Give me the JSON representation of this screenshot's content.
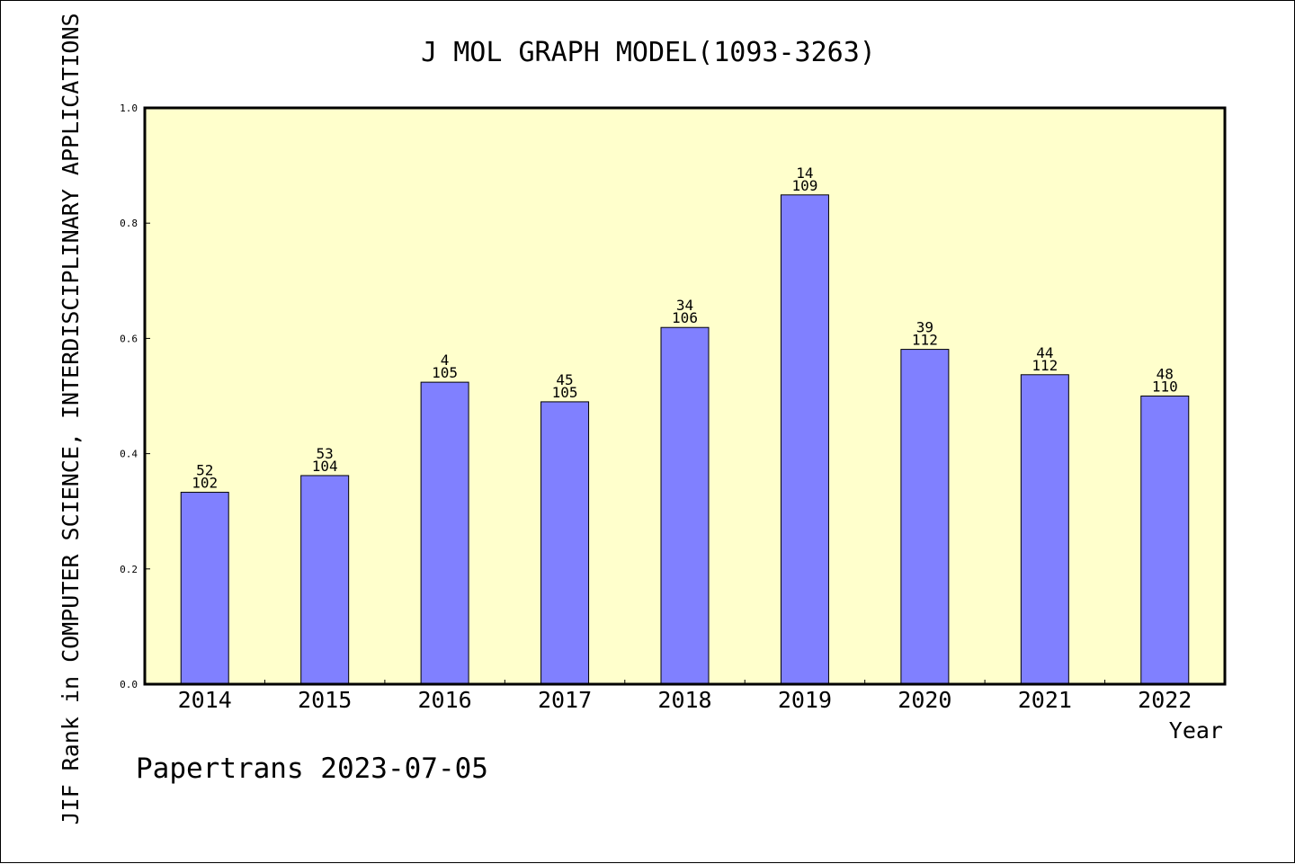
{
  "chart_data": {
    "type": "bar",
    "title": "J MOL GRAPH MODEL(1093-3263)",
    "xlabel": "Year",
    "ylabel": "JIF Rank in COMPUTER SCIENCE, INTERDISCIPLINARY APPLICATIONS",
    "ylim": [
      0.0,
      1.0
    ],
    "yticks": [
      "0.0",
      "0.2",
      "0.4",
      "0.6",
      "0.8",
      "1.0"
    ],
    "categories": [
      "2014",
      "2015",
      "2016",
      "2017",
      "2018",
      "2019",
      "2020",
      "2021",
      "2022"
    ],
    "values": [
      0.333,
      0.362,
      0.524,
      0.49,
      0.619,
      0.849,
      0.581,
      0.537,
      0.5
    ],
    "rank": [
      "52",
      "53",
      "4",
      "45",
      "34",
      "14",
      "39",
      "44",
      "48"
    ],
    "total": [
      "102",
      "104",
      "105",
      "105",
      "106",
      "109",
      "112",
      "112",
      "110"
    ],
    "grid": false,
    "legend": "none",
    "colors": {
      "bar": "#8080ff",
      "plot_bg": "#ffffcc",
      "axis": "#000000"
    }
  },
  "footer": {
    "credit": "Papertrans 2023-07-05"
  }
}
